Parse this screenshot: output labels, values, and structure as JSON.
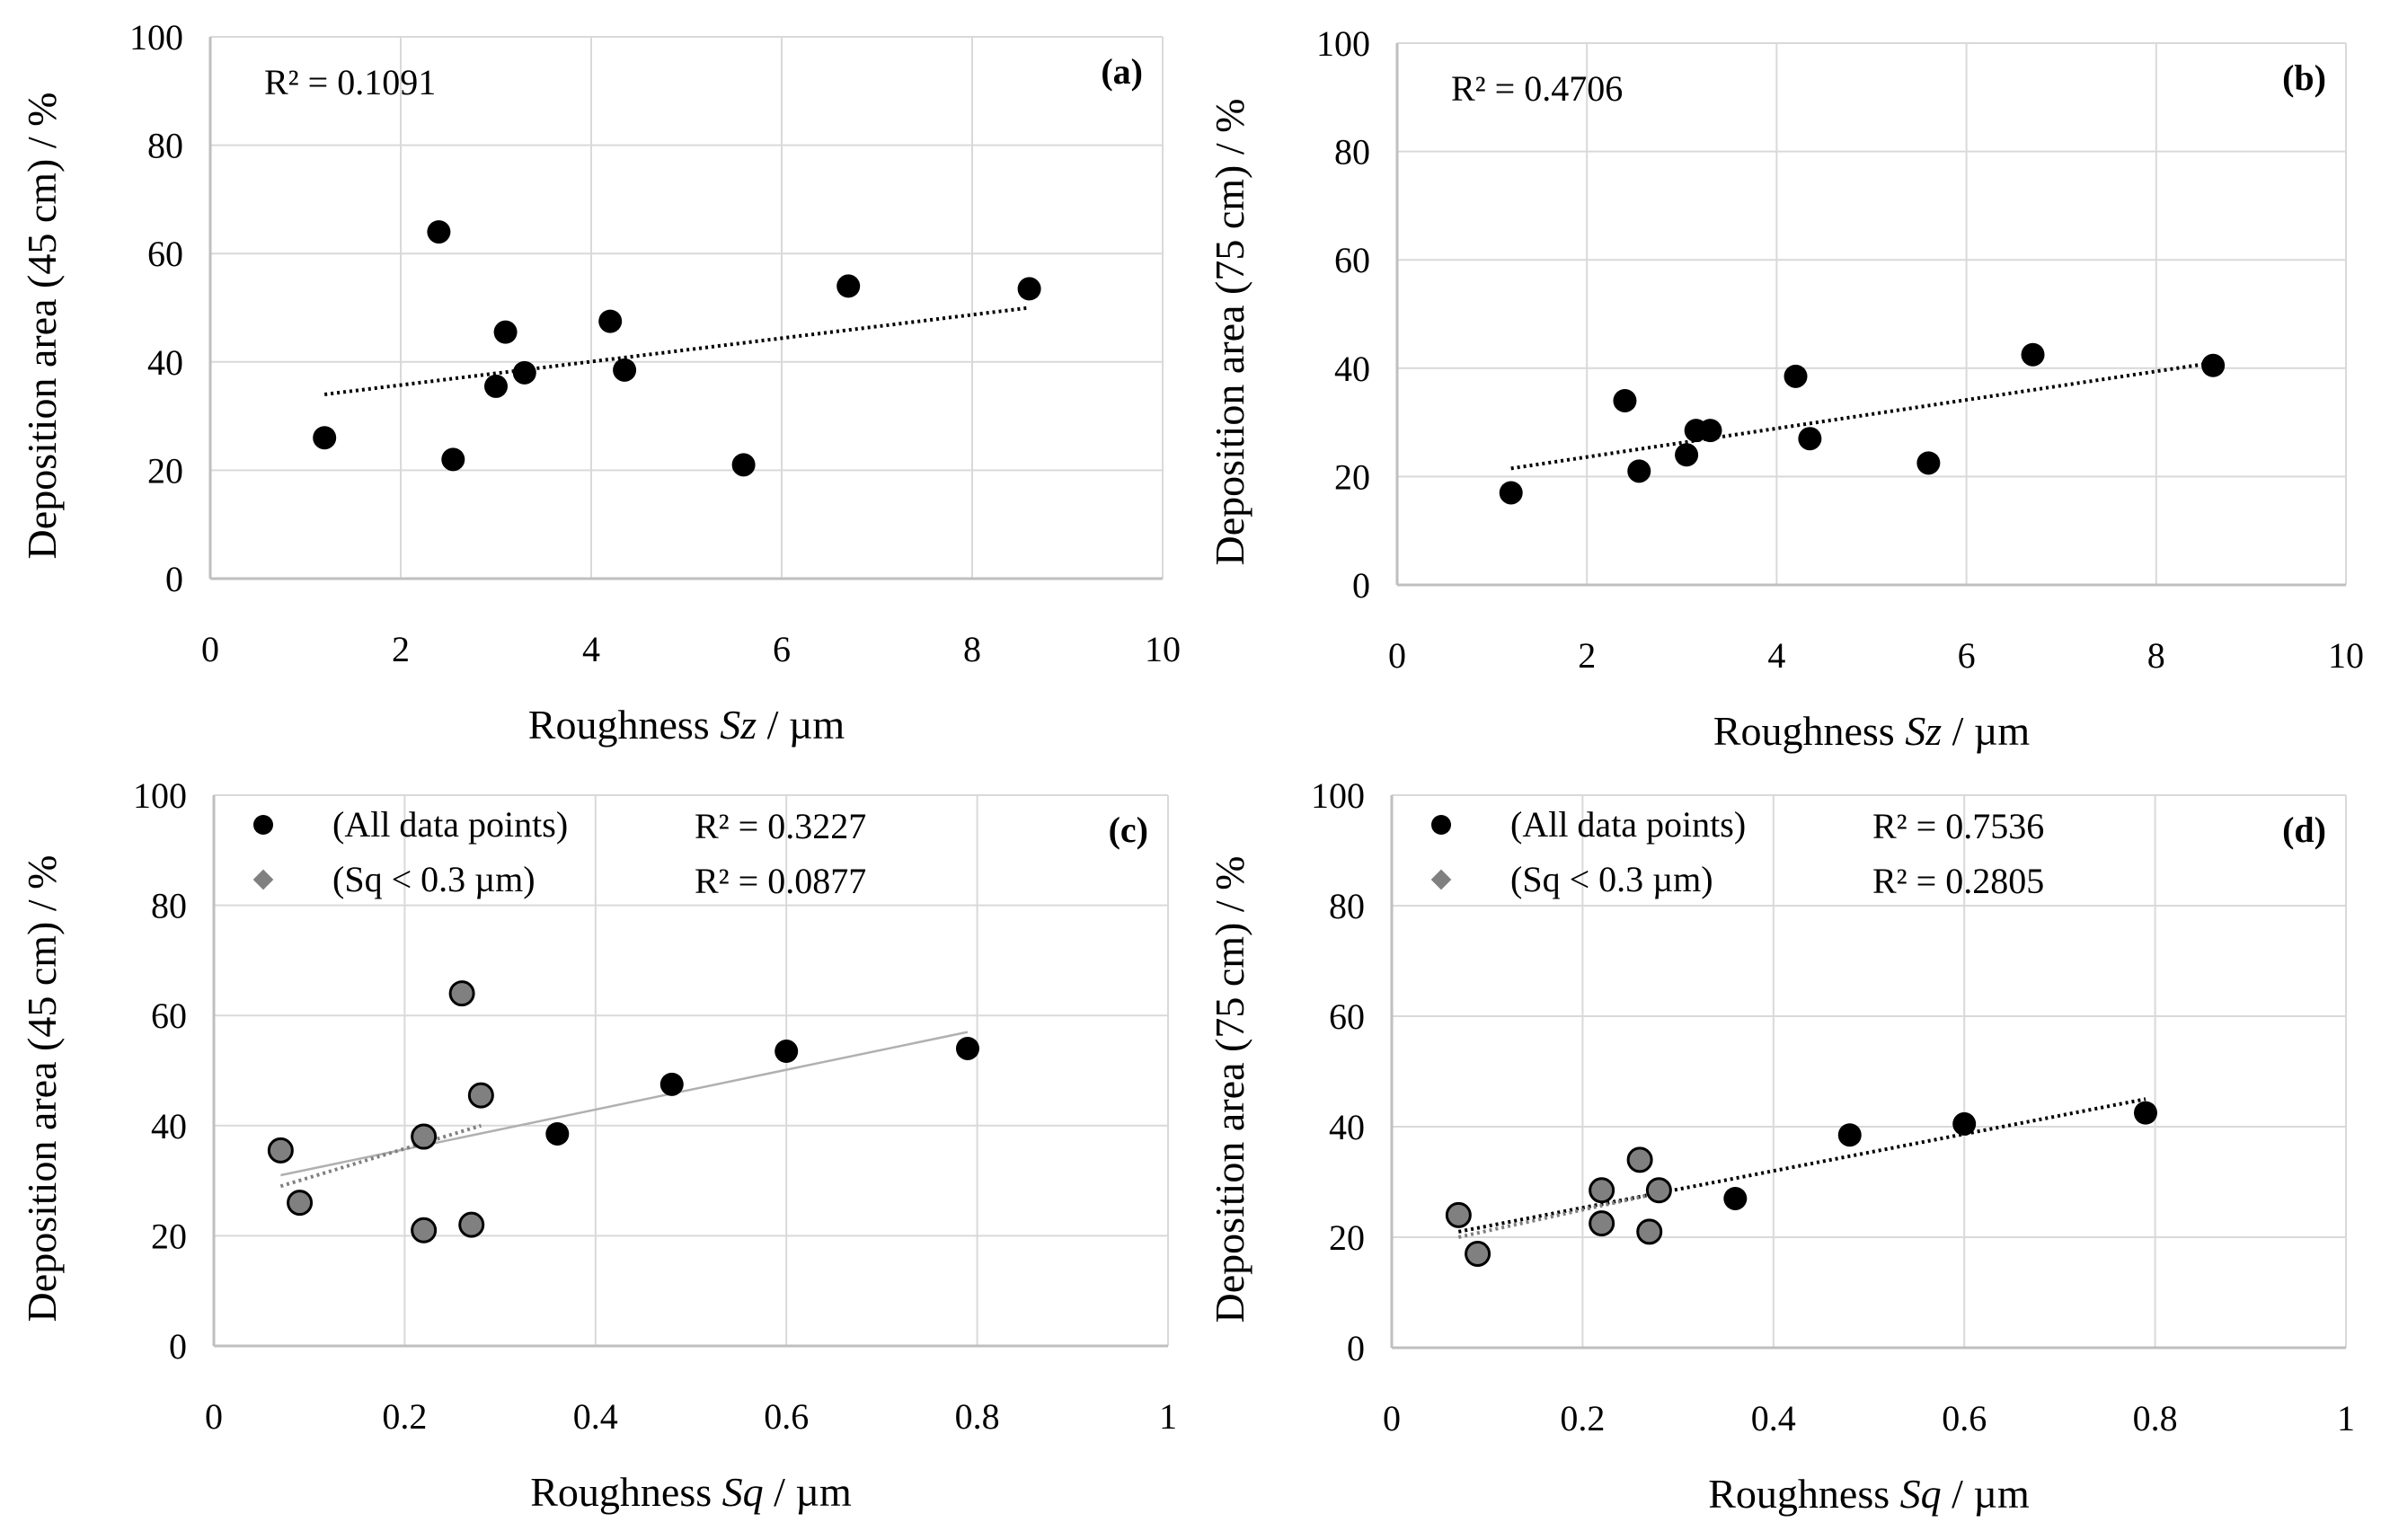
{
  "chart_data": [
    {
      "type": "scatter",
      "panel_label": "(a)",
      "xlabel": {
        "prefix": "Roughness ",
        "var": "Sz",
        "suffix": " / µm"
      },
      "ylabel": "Deposition area (45 cm) / %",
      "xlim": [
        0,
        10
      ],
      "xticks": [
        0,
        2,
        4,
        6,
        8,
        10
      ],
      "xtick_labels": [
        "0",
        "2",
        "4",
        "6",
        "8",
        "10"
      ],
      "ylim": [
        0,
        100
      ],
      "yticks": [
        0,
        20,
        40,
        60,
        80,
        100
      ],
      "ytick_labels": [
        "0",
        "20",
        "40",
        "60",
        "80",
        "100"
      ],
      "grid": true,
      "r2_text": "R² = 0.1091",
      "series": [
        {
          "name": "All data points",
          "marker": "circle",
          "color": "#000000",
          "x": [
            1.2,
            2.4,
            2.55,
            3.0,
            3.1,
            3.3,
            4.2,
            4.35,
            5.6,
            6.7,
            8.6
          ],
          "y": [
            26,
            64,
            22,
            35.5,
            45.5,
            38,
            47.5,
            38.5,
            21,
            54,
            53.5
          ]
        }
      ],
      "trendlines": [
        {
          "x": [
            1.2,
            8.6
          ],
          "y": [
            34,
            50
          ],
          "style": "dotted",
          "color": "#000000"
        }
      ]
    },
    {
      "type": "scatter",
      "panel_label": "(b)",
      "xlabel": {
        "prefix": "Roughness ",
        "var": "Sz",
        "suffix": " / µm"
      },
      "ylabel": "Deposition area (75 cm) / %",
      "xlim": [
        0,
        10
      ],
      "xticks": [
        0,
        2,
        4,
        6,
        8,
        10
      ],
      "xtick_labels": [
        "0",
        "2",
        "4",
        "6",
        "8",
        "10"
      ],
      "ylim": [
        0,
        100
      ],
      "yticks": [
        0,
        20,
        40,
        60,
        80,
        100
      ],
      "ytick_labels": [
        "0",
        "20",
        "40",
        "60",
        "80",
        "100"
      ],
      "grid": true,
      "r2_text": "R² = 0.4706",
      "series": [
        {
          "name": "All data points",
          "marker": "circle",
          "color": "#000000",
          "x": [
            1.2,
            2.4,
            2.55,
            3.05,
            3.15,
            3.3,
            4.2,
            4.35,
            5.6,
            6.7,
            8.6
          ],
          "y": [
            17,
            34,
            21,
            24,
            28.5,
            28.5,
            38.5,
            27,
            22.5,
            42.5,
            40.5
          ]
        }
      ],
      "trendlines": [
        {
          "x": [
            1.2,
            8.6
          ],
          "y": [
            21.5,
            41
          ],
          "style": "dotted",
          "color": "#000000"
        }
      ]
    },
    {
      "type": "scatter",
      "panel_label": "(c)",
      "xlabel": {
        "prefix": "Roughness ",
        "var": "Sq",
        "suffix": " / µm"
      },
      "ylabel": "Deposition area (45 cm) / %",
      "xlim": [
        0,
        1
      ],
      "xticks": [
        0,
        0.2,
        0.4,
        0.6,
        0.8,
        1
      ],
      "xtick_labels": [
        "0",
        "0.2",
        "0.4",
        "0.6",
        "0.8",
        "1"
      ],
      "ylim": [
        0,
        100
      ],
      "yticks": [
        0,
        20,
        40,
        60,
        80,
        100
      ],
      "ytick_labels": [
        "0",
        "20",
        "40",
        "60",
        "80",
        "100"
      ],
      "grid": true,
      "legend": [
        {
          "label": "(All data points)",
          "marker": "circle",
          "color": "#000000",
          "r2": "R² = 0.3227"
        },
        {
          "label": "(Sq < 0.3 µm)",
          "marker": "diamond",
          "color": "#a6a6a6",
          "r2": "R² = 0.0877"
        }
      ],
      "series": [
        {
          "name": "Sq < 0.3 µm",
          "marker": "circle",
          "color": "#808080",
          "x": [
            0.07,
            0.09,
            0.22,
            0.22,
            0.26,
            0.27,
            0.28
          ],
          "y": [
            35.5,
            26,
            38,
            21,
            64,
            22,
            45.5
          ]
        },
        {
          "name": "All data points",
          "marker": "circle",
          "color": "#000000",
          "x": [
            0.36,
            0.48,
            0.6,
            0.79
          ],
          "y": [
            38.5,
            47.5,
            53.5,
            54
          ]
        }
      ],
      "trendlines": [
        {
          "x": [
            0.07,
            0.79
          ],
          "y": [
            31,
            57
          ],
          "style": "solid",
          "color": "#b0b0b0"
        },
        {
          "x": [
            0.07,
            0.28
          ],
          "y": [
            29,
            40
          ],
          "style": "dotted",
          "color": "#808080"
        }
      ]
    },
    {
      "type": "scatter",
      "panel_label": "(d)",
      "xlabel": {
        "prefix": "Roughness ",
        "var": "Sq",
        "suffix": " / µm"
      },
      "ylabel": "Deposition area (75 cm) / %",
      "xlim": [
        0,
        1
      ],
      "xticks": [
        0,
        0.2,
        0.4,
        0.6,
        0.8,
        1
      ],
      "xtick_labels": [
        "0",
        "0.2",
        "0.4",
        "0.6",
        "0.8",
        "1"
      ],
      "ylim": [
        0,
        100
      ],
      "yticks": [
        0,
        20,
        40,
        60,
        80,
        100
      ],
      "ytick_labels": [
        "0",
        "20",
        "40",
        "60",
        "80",
        "100"
      ],
      "grid": true,
      "legend": [
        {
          "label": "(All data points)",
          "marker": "circle",
          "color": "#000000",
          "r2": "R² = 0.7536"
        },
        {
          "label": "(Sq < 0.3 µm)",
          "marker": "diamond",
          "color": "#a6a6a6",
          "r2": "R² = 0.2805"
        }
      ],
      "series": [
        {
          "name": "Sq < 0.3 µm",
          "marker": "circle",
          "color": "#808080",
          "x": [
            0.07,
            0.09,
            0.22,
            0.22,
            0.26,
            0.27,
            0.28
          ],
          "y": [
            24,
            17,
            28.5,
            22.5,
            34,
            21,
            28.5
          ]
        },
        {
          "name": "All data points",
          "marker": "circle",
          "color": "#000000",
          "x": [
            0.36,
            0.48,
            0.6,
            0.79
          ],
          "y": [
            27,
            38.5,
            40.5,
            42.5
          ]
        }
      ],
      "trendlines": [
        {
          "x": [
            0.07,
            0.79
          ],
          "y": [
            21,
            45
          ],
          "style": "dotted",
          "color": "#000000"
        },
        {
          "x": [
            0.07,
            0.28
          ],
          "y": [
            20,
            28
          ],
          "style": "dotted",
          "color": "#808080"
        }
      ]
    }
  ]
}
